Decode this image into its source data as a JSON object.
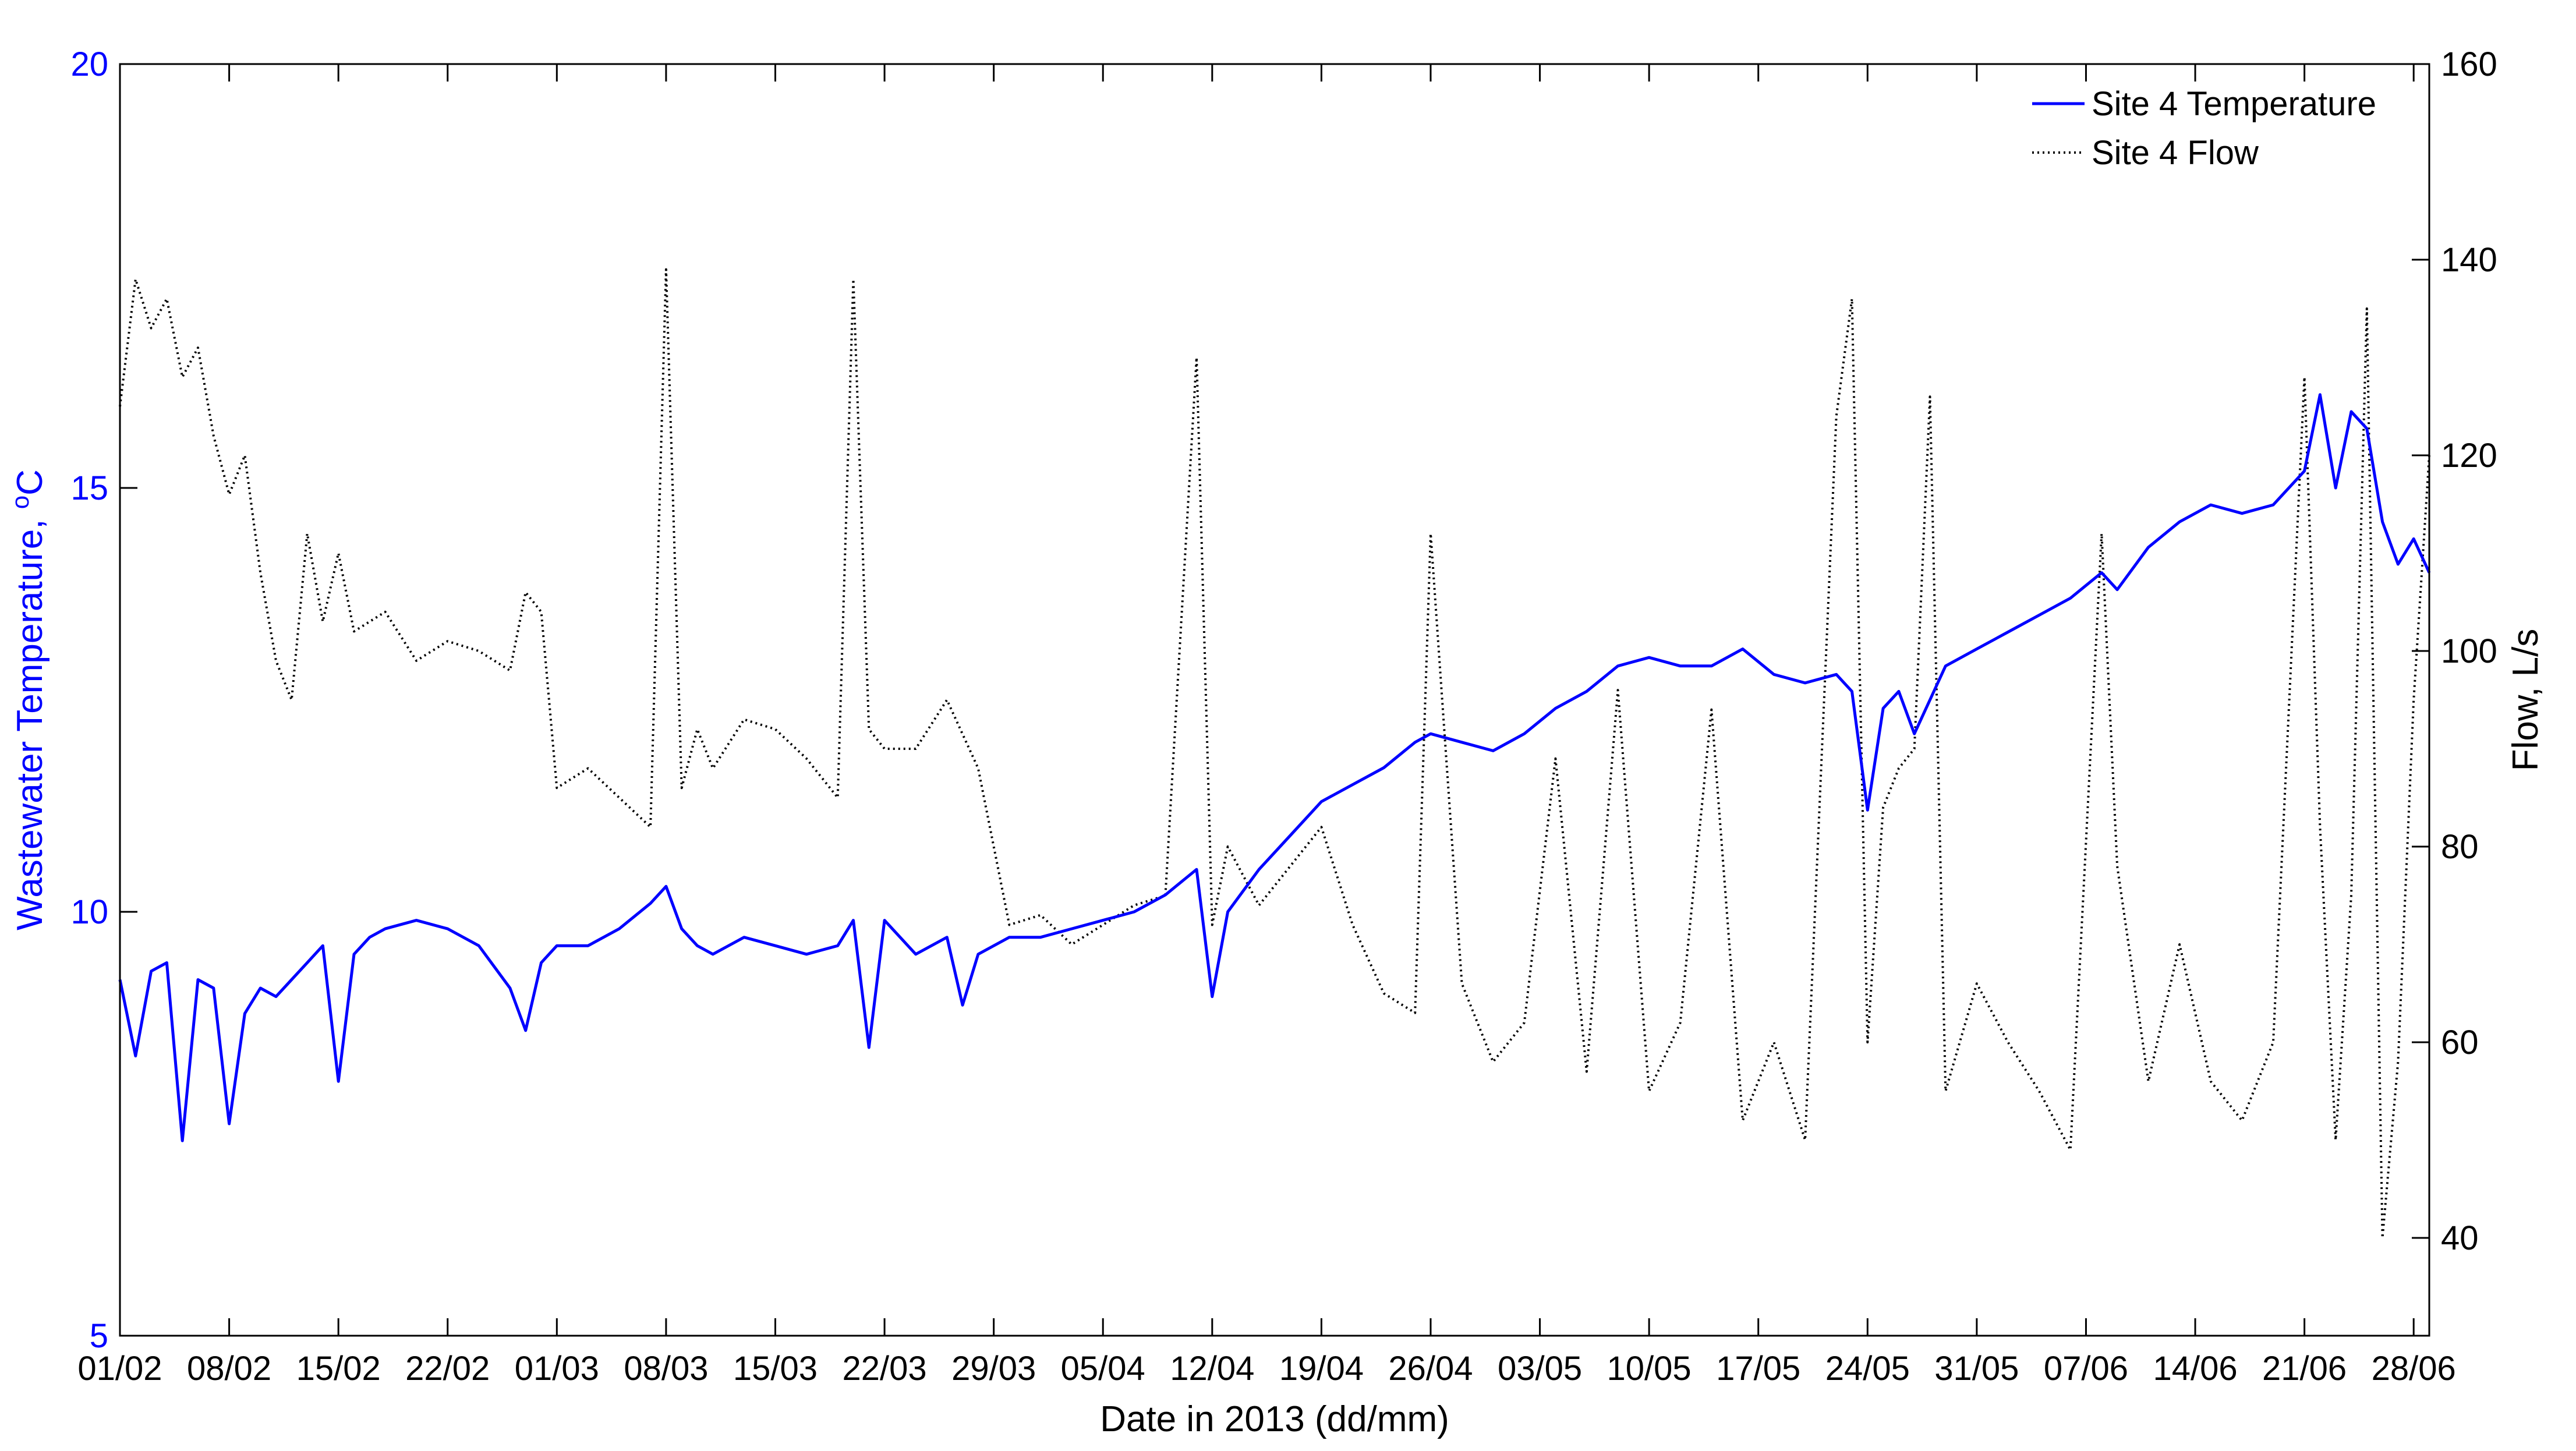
{
  "chart_data": {
    "type": "line",
    "title": "",
    "xlabel": "Date in 2013 (dd/mm)",
    "ylabel_left": "Wastewater Temperature, °C",
    "ylabel_left_parts": {
      "main": "Wastewater Temperature, ",
      "superscript": "o",
      "unit": "C"
    },
    "ylabel_right": "Flow, L/s",
    "x_range": [
      "2013-02-01",
      "2013-06-29"
    ],
    "x_tick_dates": [
      "2013-02-01",
      "2013-02-08",
      "2013-02-15",
      "2013-02-22",
      "2013-03-01",
      "2013-03-08",
      "2013-03-15",
      "2013-03-22",
      "2013-03-29",
      "2013-04-05",
      "2013-04-12",
      "2013-04-19",
      "2013-04-26",
      "2013-05-03",
      "2013-05-10",
      "2013-05-17",
      "2013-05-24",
      "2013-05-31",
      "2013-06-07",
      "2013-06-14",
      "2013-06-21",
      "2013-06-28"
    ],
    "x_tick_labels": [
      "01/02",
      "08/02",
      "15/02",
      "22/02",
      "01/03",
      "08/03",
      "15/03",
      "22/03",
      "29/03",
      "05/04",
      "12/04",
      "19/04",
      "26/04",
      "03/05",
      "10/05",
      "17/05",
      "24/05",
      "31/05",
      "07/06",
      "14/06",
      "21/06",
      "28/06"
    ],
    "ylim_left": [
      5,
      20
    ],
    "y_ticks_left": [
      5,
      10,
      15,
      20
    ],
    "ylim_right": [
      30,
      160
    ],
    "y_ticks_right": [
      40,
      60,
      80,
      100,
      120,
      140,
      160
    ],
    "grid": false,
    "legend_position": "top-right",
    "colors": {
      "temperature": "#0000ff",
      "flow": "#000000",
      "axes": "#000000",
      "left_axis": "#0000ff"
    },
    "series": [
      {
        "name": "Site 4 Temperature",
        "axis": "left",
        "style": "solid",
        "x": [
          "2013-02-01",
          "2013-02-02",
          "2013-02-03",
          "2013-02-04",
          "2013-02-05",
          "2013-02-06",
          "2013-02-07",
          "2013-02-08",
          "2013-02-09",
          "2013-02-10",
          "2013-02-11",
          "2013-02-12",
          "2013-02-13",
          "2013-02-14",
          "2013-02-15",
          "2013-02-16",
          "2013-02-17",
          "2013-02-18",
          "2013-02-20",
          "2013-02-22",
          "2013-02-24",
          "2013-02-26",
          "2013-02-27",
          "2013-02-28",
          "2013-03-01",
          "2013-03-03",
          "2013-03-05",
          "2013-03-07",
          "2013-03-08",
          "2013-03-09",
          "2013-03-10",
          "2013-03-11",
          "2013-03-13",
          "2013-03-15",
          "2013-03-17",
          "2013-03-19",
          "2013-03-20",
          "2013-03-21",
          "2013-03-22",
          "2013-03-24",
          "2013-03-26",
          "2013-03-27",
          "2013-03-28",
          "2013-03-30",
          "2013-04-01",
          "2013-04-03",
          "2013-04-05",
          "2013-04-07",
          "2013-04-09",
          "2013-04-11",
          "2013-04-12",
          "2013-04-13",
          "2013-04-15",
          "2013-04-17",
          "2013-04-19",
          "2013-04-21",
          "2013-04-23",
          "2013-04-25",
          "2013-04-26",
          "2013-04-28",
          "2013-04-30",
          "2013-05-02",
          "2013-05-04",
          "2013-05-06",
          "2013-05-08",
          "2013-05-10",
          "2013-05-12",
          "2013-05-14",
          "2013-05-16",
          "2013-05-18",
          "2013-05-20",
          "2013-05-22",
          "2013-05-23",
          "2013-05-24",
          "2013-05-25",
          "2013-05-26",
          "2013-05-27",
          "2013-05-28",
          "2013-05-29",
          "2013-05-31",
          "2013-06-02",
          "2013-06-04",
          "2013-06-06",
          "2013-06-08",
          "2013-06-09",
          "2013-06-11",
          "2013-06-13",
          "2013-06-15",
          "2013-06-17",
          "2013-06-19",
          "2013-06-21",
          "2013-06-22",
          "2013-06-23",
          "2013-06-24",
          "2013-06-25",
          "2013-06-26",
          "2013-06-27",
          "2013-06-28",
          "2013-06-29"
        ],
        "values": [
          9.2,
          8.3,
          9.3,
          9.4,
          7.3,
          9.2,
          9.1,
          7.5,
          8.8,
          9.1,
          9.0,
          9.2,
          9.4,
          9.6,
          8.0,
          9.5,
          9.7,
          9.8,
          9.9,
          9.8,
          9.6,
          9.1,
          8.6,
          9.4,
          9.6,
          9.6,
          9.8,
          10.1,
          10.3,
          9.8,
          9.6,
          9.5,
          9.7,
          9.6,
          9.5,
          9.6,
          9.9,
          8.4,
          9.9,
          9.5,
          9.7,
          8.9,
          9.5,
          9.7,
          9.7,
          9.8,
          9.9,
          10.0,
          10.2,
          10.5,
          9.0,
          10.0,
          10.5,
          10.9,
          11.3,
          11.5,
          11.7,
          12.0,
          12.1,
          12.0,
          11.9,
          12.1,
          12.4,
          12.6,
          12.9,
          13.0,
          12.9,
          12.9,
          13.1,
          12.8,
          12.7,
          12.8,
          12.6,
          11.2,
          12.4,
          12.6,
          12.1,
          12.5,
          12.9,
          13.1,
          13.3,
          13.5,
          13.7,
          14.0,
          13.8,
          14.3,
          14.6,
          14.8,
          14.7,
          14.8,
          15.2,
          16.1,
          15.0,
          15.9,
          15.7,
          14.6,
          14.1,
          14.4,
          14.0
        ]
      },
      {
        "name": "Site 4 Flow",
        "axis": "right",
        "style": "dotted",
        "x": [
          "2013-02-01",
          "2013-02-02",
          "2013-02-03",
          "2013-02-04",
          "2013-02-05",
          "2013-02-06",
          "2013-02-07",
          "2013-02-08",
          "2013-02-09",
          "2013-02-10",
          "2013-02-11",
          "2013-02-12",
          "2013-02-13",
          "2013-02-14",
          "2013-02-15",
          "2013-02-16",
          "2013-02-18",
          "2013-02-20",
          "2013-02-22",
          "2013-02-24",
          "2013-02-26",
          "2013-02-27",
          "2013-02-28",
          "2013-03-01",
          "2013-03-03",
          "2013-03-05",
          "2013-03-07",
          "2013-03-08",
          "2013-03-09",
          "2013-03-10",
          "2013-03-11",
          "2013-03-13",
          "2013-03-15",
          "2013-03-17",
          "2013-03-19",
          "2013-03-20",
          "2013-03-21",
          "2013-03-22",
          "2013-03-24",
          "2013-03-26",
          "2013-03-28",
          "2013-03-30",
          "2013-04-01",
          "2013-04-03",
          "2013-04-05",
          "2013-04-07",
          "2013-04-09",
          "2013-04-11",
          "2013-04-12",
          "2013-04-13",
          "2013-04-15",
          "2013-04-17",
          "2013-04-19",
          "2013-04-21",
          "2013-04-23",
          "2013-04-25",
          "2013-04-26",
          "2013-04-28",
          "2013-04-30",
          "2013-05-02",
          "2013-05-04",
          "2013-05-06",
          "2013-05-08",
          "2013-05-10",
          "2013-05-12",
          "2013-05-14",
          "2013-05-16",
          "2013-05-18",
          "2013-05-20",
          "2013-05-22",
          "2013-05-23",
          "2013-05-24",
          "2013-05-25",
          "2013-05-26",
          "2013-05-27",
          "2013-05-28",
          "2013-05-29",
          "2013-05-31",
          "2013-06-02",
          "2013-06-04",
          "2013-06-06",
          "2013-06-08",
          "2013-06-09",
          "2013-06-11",
          "2013-06-13",
          "2013-06-15",
          "2013-06-17",
          "2013-06-19",
          "2013-06-21",
          "2013-06-22",
          "2013-06-23",
          "2013-06-24",
          "2013-06-25",
          "2013-06-26",
          "2013-06-27",
          "2013-06-28",
          "2013-06-29"
        ],
        "values": [
          125,
          138,
          133,
          136,
          128,
          131,
          122,
          116,
          120,
          108,
          99,
          95,
          112,
          103,
          110,
          102,
          104,
          99,
          101,
          100,
          98,
          106,
          104,
          86,
          88,
          85,
          82,
          139,
          86,
          92,
          88,
          93,
          92,
          89,
          85,
          138,
          92,
          90,
          90,
          95,
          88,
          72,
          73,
          70,
          72,
          74,
          75,
          130,
          72,
          80,
          74,
          78,
          82,
          72,
          65,
          63,
          112,
          66,
          58,
          62,
          89,
          57,
          96,
          55,
          62,
          94,
          52,
          60,
          50,
          124,
          136,
          60,
          84,
          88,
          90,
          126,
          55,
          66,
          60,
          55,
          49,
          112,
          78,
          56,
          70,
          56,
          52,
          60,
          128,
          82,
          50,
          75,
          135,
          40,
          58,
          95,
          120
        ]
      }
    ]
  }
}
